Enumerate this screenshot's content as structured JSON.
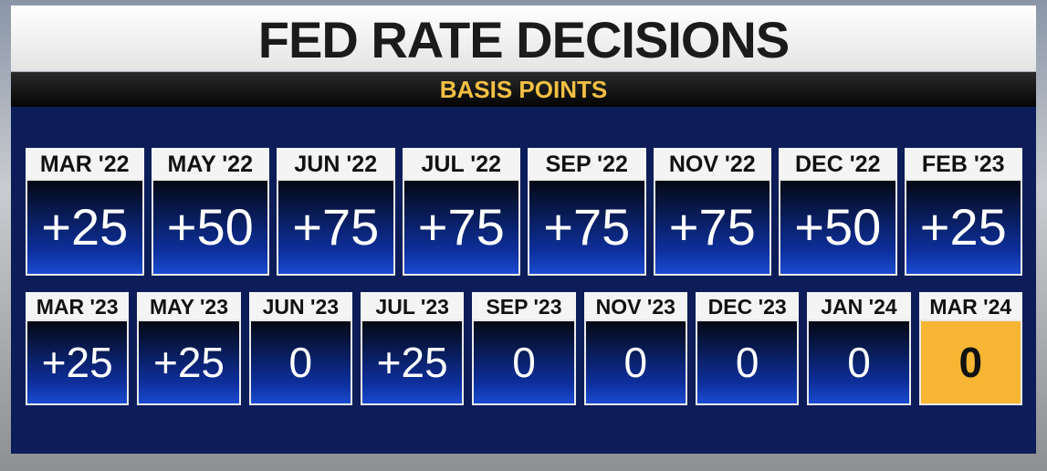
{
  "header": {
    "title": "FED RATE DECISIONS",
    "subtitle": "BASIS POINTS"
  },
  "rows": [
    [
      {
        "label": "MAR '22",
        "value": "+25"
      },
      {
        "label": "MAY '22",
        "value": "+50"
      },
      {
        "label": "JUN '22",
        "value": "+75"
      },
      {
        "label": "JUL '22",
        "value": "+75"
      },
      {
        "label": "SEP '22",
        "value": "+75"
      },
      {
        "label": "NOV '22",
        "value": "+75"
      },
      {
        "label": "DEC '22",
        "value": "+50"
      },
      {
        "label": "FEB '23",
        "value": "+25"
      }
    ],
    [
      {
        "label": "MAR '23",
        "value": "+25"
      },
      {
        "label": "MAY '23",
        "value": "+25"
      },
      {
        "label": "JUN '23",
        "value": "0"
      },
      {
        "label": "JUL '23",
        "value": "+25"
      },
      {
        "label": "SEP '23",
        "value": "0"
      },
      {
        "label": "NOV '23",
        "value": "0"
      },
      {
        "label": "DEC '23",
        "value": "0"
      },
      {
        "label": "JAN '24",
        "value": "0"
      },
      {
        "label": "MAR '24",
        "value": "0",
        "color": "#f6b533"
      }
    ]
  ]
}
